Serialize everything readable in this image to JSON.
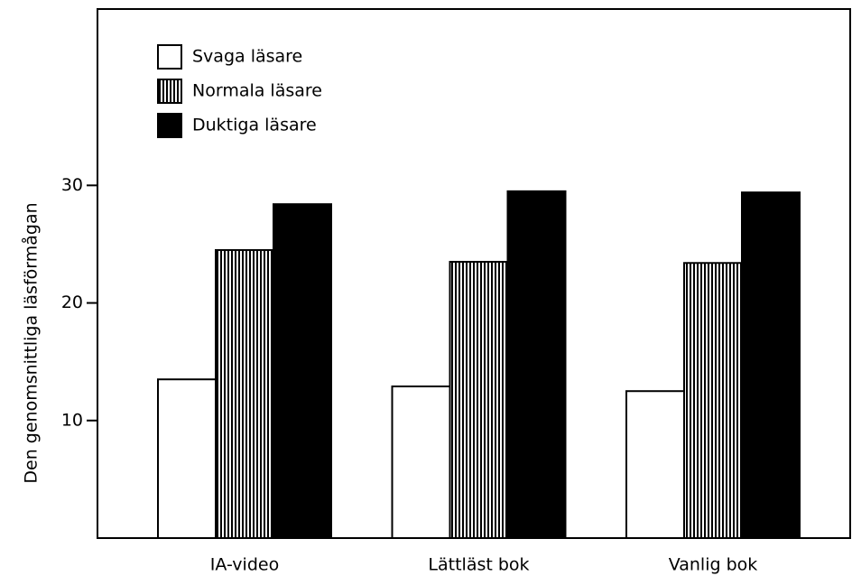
{
  "chart_data": {
    "type": "bar",
    "y_label": "Den genomsnittliga läsförmågan",
    "categories": [
      "IA-video",
      "Lättläst bok",
      "Vanlig bok"
    ],
    "series": [
      {
        "name": "Svaga läsare",
        "color": "#ffffff",
        "values": [
          13.5,
          12.9,
          12.5
        ]
      },
      {
        "name": "Normala läsare",
        "color": "#000000",
        "pattern": "stripes",
        "values": [
          24.5,
          23.5,
          23.4
        ]
      },
      {
        "name": "Duktiga läsare",
        "color": "#000000",
        "values": [
          28.4,
          29.5,
          29.4
        ]
      }
    ],
    "ylim": [
      0,
      45
    ],
    "yticks": [
      10,
      20,
      30
    ],
    "grid": false,
    "legend": "upper left"
  }
}
